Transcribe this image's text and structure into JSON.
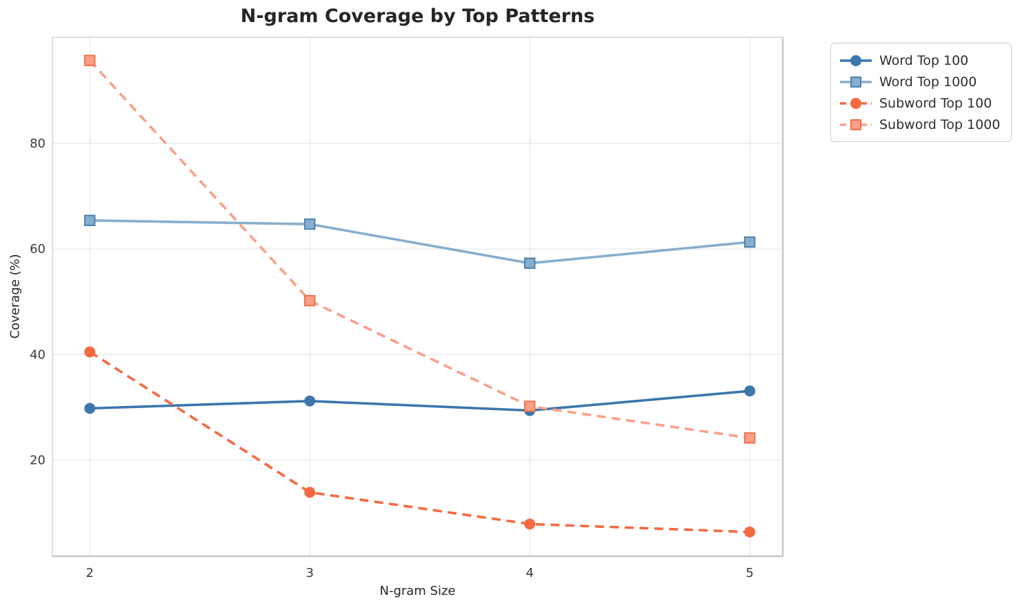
{
  "chart_data": {
    "type": "line",
    "title": "N-gram Coverage by Top Patterns",
    "xlabel": "N-gram Size",
    "ylabel": "Coverage (%)",
    "x": [
      2,
      3,
      4,
      5
    ],
    "xticks": [
      "2",
      "3",
      "4",
      "5"
    ],
    "ytick_values": [
      20,
      40,
      60,
      80
    ],
    "yticks": [
      "20",
      "40",
      "60",
      "80"
    ],
    "xlim": [
      1.83,
      5.15
    ],
    "ylim": [
      1.8,
      100.1
    ],
    "grid": true,
    "legend_position": "outside-upper-right",
    "grid_color": "#e7e7e7",
    "spine_color": "#d3d3d3",
    "spine_color_dark": "#c3c8ca",
    "tick_label_color": "#3a3a3a",
    "text_color": "#262626",
    "series": [
      {
        "name": "Word Top 100",
        "values": [
          29.8,
          31.2,
          29.4,
          33.1
        ],
        "color": "#3b76ad",
        "edge_color": "#3b76ad",
        "marker": "circle",
        "line_style": "solid"
      },
      {
        "name": "Word Top 1000",
        "values": [
          65.4,
          64.7,
          57.3,
          61.3
        ],
        "color": "#87aecd",
        "edge_color": "#4e82b0",
        "marker": "square",
        "line_style": "solid"
      },
      {
        "name": "Subword Top 100",
        "values": [
          40.5,
          13.9,
          7.9,
          6.4
        ],
        "color": "#f4693f",
        "edge_color": "#f4693f",
        "marker": "circle",
        "line_style": "dashed"
      },
      {
        "name": "Subword Top 1000",
        "values": [
          95.7,
          50.2,
          30.2,
          24.2
        ],
        "color": "#faa088",
        "edge_color": "#f2704a",
        "marker": "square",
        "line_style": "dashed"
      }
    ]
  }
}
